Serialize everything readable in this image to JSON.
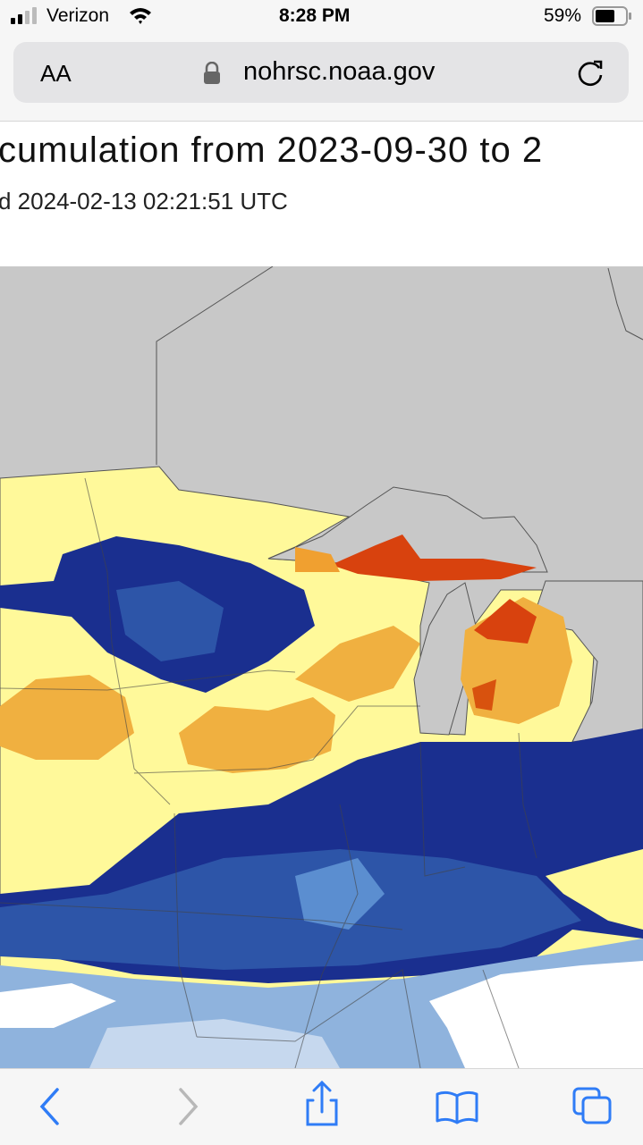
{
  "status_bar": {
    "carrier": "Verizon",
    "time": "8:28 PM",
    "battery": "59%"
  },
  "address_bar": {
    "text_size_button": "AA",
    "url": "nohrsc.noaa.gov"
  },
  "page": {
    "title": "cumulation from 2023-09-30 to 2",
    "subtitle": "d 2024-02-13 02:21:51 UTC"
  }
}
